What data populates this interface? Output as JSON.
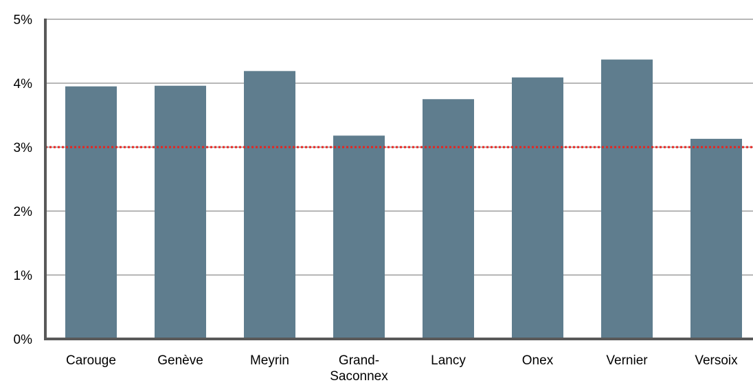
{
  "chart_data": {
    "type": "bar",
    "categories": [
      [
        "Carouge"
      ],
      [
        "Genève"
      ],
      [
        "Meyrin"
      ],
      [
        "Grand-",
        "Saconnex"
      ],
      [
        "Lancy"
      ],
      [
        "Onex"
      ],
      [
        "Vernier"
      ],
      [
        "Versoix"
      ]
    ],
    "values": [
      3.95,
      3.96,
      4.19,
      3.18,
      3.75,
      4.09,
      4.37,
      3.13
    ],
    "yticks": [
      "0%",
      "1%",
      "2%",
      "3%",
      "4%",
      "5%"
    ],
    "ylim": [
      0,
      5
    ],
    "reference_line": {
      "value": 3,
      "style": "dotted",
      "color": "#e8231f"
    },
    "grid": true,
    "colors": {
      "bar": "#5f7d8e",
      "grid": "#8c8c8c",
      "axis": "#595959"
    }
  }
}
